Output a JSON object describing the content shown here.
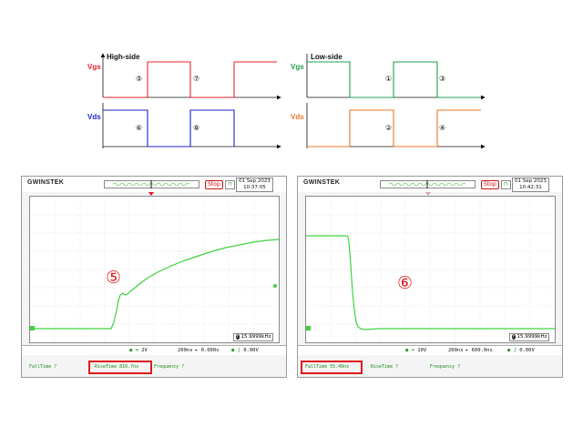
{
  "timing_diagram": {
    "left": {
      "title": "High-side",
      "vgs_label": "Vgs",
      "vds_label": "Vds",
      "markers": [
        "⑤",
        "⑦",
        "⑥",
        "⑧"
      ]
    },
    "right": {
      "title": "Low-side",
      "vgs_label": "Vgs",
      "vds_label": "Vds",
      "markers": [
        "①",
        "③",
        "②",
        "④"
      ]
    },
    "colors": {
      "hs_vgs": "#e8222c",
      "hs_vds": "#1a25c8",
      "ls_vgs": "#20a050",
      "ls_vds": "#e8782a"
    }
  },
  "scopes": [
    {
      "brand": "GWINSTEK",
      "status": "Stop",
      "date": "01 Sep 2023",
      "time": "10:37:05",
      "annotation": "⑤",
      "freq_readout": "15.9999kHz",
      "channel_scale": "2V",
      "timebase": "200ns",
      "position": "0.000s",
      "trigger_level": "0.00V",
      "meas_left": "FallTime ?",
      "meas_center": "RiseTime 816.7ns",
      "meas_right": "Frequency ?",
      "highlighted": "RiseTime 816.7ns"
    },
    {
      "brand": "GWINSTEK",
      "status": "Stop",
      "date": "01 Sep 2023",
      "time": "10:42:31",
      "annotation": "⑥",
      "freq_readout": "15.9999kHz",
      "channel_scale": "10V",
      "timebase": "200ns",
      "position": "600.0ns",
      "trigger_level": "0.00V",
      "meas_left": "FallTime 55.40ns",
      "meas_center": "RiseTime ?",
      "meas_right": "Frequency ?",
      "highlighted": "FallTime 55.40ns"
    }
  ]
}
